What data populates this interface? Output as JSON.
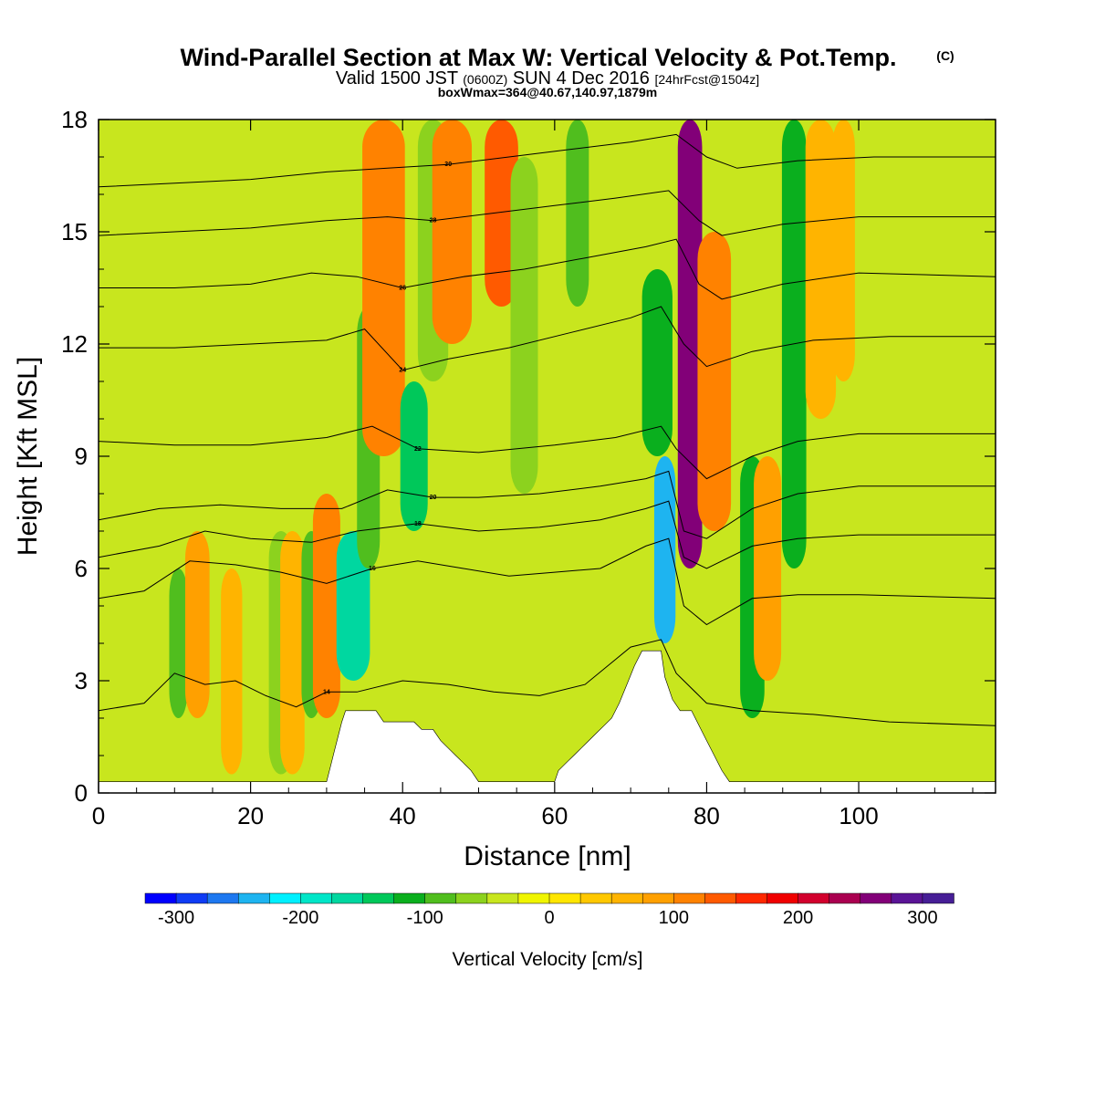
{
  "chart_data": {
    "type": "heatmap",
    "title": "Wind-Parallel Section at Max W: Vertical Velocity & Pot.Temp.",
    "title_mark": "(C)",
    "subtitle_parts": [
      "Valid 1500 JST ",
      "(0600Z)",
      " SUN 4 Dec 2016 ",
      "[24hrFcst@1504z]"
    ],
    "subtitle2": "boxWmax=364@40.67,140.97,1879m",
    "xlabel": "Distance [nm]",
    "ylabel": "Height [Kft MSL]",
    "xlim": [
      0,
      118
    ],
    "ylim": [
      0,
      18
    ],
    "xticks": [
      "0",
      "20",
      "40",
      "60",
      "80",
      "100"
    ],
    "yticks": [
      "0",
      "3",
      "6",
      "9",
      "12",
      "15",
      "18"
    ],
    "grid": false,
    "colorbar": {
      "label": "Vertical Velocity [cm/s]",
      "min": -325,
      "max": 325,
      "step": 25,
      "tick_labels": [
        "-300",
        "-200",
        "-100",
        "0",
        "100",
        "200",
        "300"
      ],
      "colors": [
        "#0000FF",
        "#0F3CF5",
        "#1E78F0",
        "#1EB4F0",
        "#00F0FF",
        "#00E6C8",
        "#00D7A0",
        "#00C85A",
        "#0AAF1E",
        "#50BE1E",
        "#8CD21E",
        "#C8E61E",
        "#F0F500",
        "#FFE600",
        "#FFC800",
        "#FFB400",
        "#FFA000",
        "#FF8200",
        "#FF5A00",
        "#FF2800",
        "#F00000",
        "#D2002D",
        "#AA0050",
        "#820078",
        "#5A1496",
        "#461E96"
      ]
    },
    "vertical_velocity_bands": [
      {
        "x": 10.5,
        "w": 1.2,
        "bottom": 2,
        "top": 6,
        "value": -80
      },
      {
        "x": 13,
        "w": 1.6,
        "bottom": 2,
        "top": 7,
        "value": 90
      },
      {
        "x": 17.5,
        "w": 1.4,
        "bottom": 0.5,
        "top": 6,
        "value": 60
      },
      {
        "x": 24,
        "w": 1.6,
        "bottom": 0.5,
        "top": 7,
        "value": -60
      },
      {
        "x": 25.5,
        "w": 1.6,
        "bottom": 0.5,
        "top": 7,
        "value": 70
      },
      {
        "x": 28,
        "w": 1.3,
        "bottom": 2,
        "top": 7,
        "value": -100
      },
      {
        "x": 30,
        "w": 1.8,
        "bottom": 2,
        "top": 8,
        "value": 120
      },
      {
        "x": 33.5,
        "w": 2.2,
        "bottom": 3,
        "top": 7,
        "value": -175
      },
      {
        "x": 35.5,
        "w": 1.5,
        "bottom": 6,
        "top": 13,
        "value": -90
      },
      {
        "x": 37.5,
        "w": 2.8,
        "bottom": 9,
        "top": 18,
        "value": 110
      },
      {
        "x": 41.5,
        "w": 1.8,
        "bottom": 7,
        "top": 11,
        "value": -130
      },
      {
        "x": 44,
        "w": 2.0,
        "bottom": 11,
        "top": 18,
        "value": -70
      },
      {
        "x": 46.5,
        "w": 2.6,
        "bottom": 12,
        "top": 18,
        "value": 100
      },
      {
        "x": 53,
        "w": 2.2,
        "bottom": 13,
        "top": 18,
        "value": 130
      },
      {
        "x": 56,
        "w": 1.8,
        "bottom": 8,
        "top": 17,
        "value": -60
      },
      {
        "x": 63,
        "w": 1.5,
        "bottom": 13,
        "top": 18,
        "value": -80
      },
      {
        "x": 74.5,
        "w": 1.4,
        "bottom": 4,
        "top": 9,
        "value": -250
      },
      {
        "x": 73.5,
        "w": 2.0,
        "bottom": 9,
        "top": 14,
        "value": -120
      },
      {
        "x": 77.8,
        "w": 1.6,
        "bottom": 6,
        "top": 18,
        "value": 260
      },
      {
        "x": 81,
        "w": 2.2,
        "bottom": 7,
        "top": 15,
        "value": 110
      },
      {
        "x": 86,
        "w": 1.6,
        "bottom": 2,
        "top": 9,
        "value": -110
      },
      {
        "x": 88,
        "w": 1.8,
        "bottom": 3,
        "top": 9,
        "value": 80
      },
      {
        "x": 91.5,
        "w": 1.6,
        "bottom": 6,
        "top": 18,
        "value": -110
      },
      {
        "x": 95,
        "w": 2.0,
        "bottom": 10,
        "top": 18,
        "value": 60
      },
      {
        "x": 98,
        "w": 1.5,
        "bottom": 11,
        "top": 18,
        "value": 70
      }
    ],
    "terrain": [
      [
        0,
        0.3
      ],
      [
        30,
        0.3
      ],
      [
        30.5,
        0.7
      ],
      [
        31,
        1.1
      ],
      [
        31.5,
        1.5
      ],
      [
        32,
        1.9
      ],
      [
        32.5,
        2.2
      ],
      [
        36.5,
        2.2
      ],
      [
        37.5,
        1.9
      ],
      [
        41.5,
        1.9
      ],
      [
        42.5,
        1.7
      ],
      [
        44,
        1.7
      ],
      [
        45,
        1.4
      ],
      [
        46,
        1.2
      ],
      [
        47,
        1.0
      ],
      [
        48,
        0.8
      ],
      [
        49,
        0.6
      ],
      [
        50,
        0.3
      ],
      [
        60,
        0.3
      ],
      [
        60.5,
        0.6
      ],
      [
        61.5,
        0.8
      ],
      [
        62.5,
        1.0
      ],
      [
        63.5,
        1.2
      ],
      [
        64.5,
        1.4
      ],
      [
        65.5,
        1.6
      ],
      [
        66.5,
        1.8
      ],
      [
        67.5,
        2.0
      ],
      [
        68.5,
        2.4
      ],
      [
        69.5,
        2.9
      ],
      [
        70.5,
        3.4
      ],
      [
        71.5,
        3.8
      ],
      [
        74,
        3.8
      ],
      [
        74.5,
        3.1
      ],
      [
        75.5,
        2.5
      ],
      [
        76.5,
        2.2
      ],
      [
        78,
        2.2
      ],
      [
        79,
        1.8
      ],
      [
        80,
        1.4
      ],
      [
        81,
        1.0
      ],
      [
        82,
        0.6
      ],
      [
        83,
        0.3
      ],
      [
        118,
        0.3
      ]
    ],
    "pot_temp_contours": [
      {
        "label": "14",
        "points": [
          [
            0,
            2.2
          ],
          [
            6,
            2.4
          ],
          [
            10,
            3.2
          ],
          [
            14,
            2.9
          ],
          [
            18,
            3.0
          ],
          [
            22,
            2.6
          ],
          [
            26,
            2.3
          ],
          [
            30,
            2.7
          ],
          [
            34,
            2.7
          ],
          [
            40,
            3.0
          ],
          [
            46,
            2.9
          ],
          [
            52,
            2.7
          ],
          [
            58,
            2.6
          ],
          [
            64,
            2.9
          ],
          [
            70,
            3.9
          ],
          [
            74,
            4.1
          ],
          [
            76,
            3.2
          ],
          [
            80,
            2.4
          ],
          [
            86,
            2.2
          ],
          [
            94,
            2.1
          ],
          [
            104,
            1.9
          ],
          [
            118,
            1.8
          ]
        ]
      },
      {
        "label": "16",
        "points": [
          [
            0,
            5.2
          ],
          [
            6,
            5.4
          ],
          [
            12,
            6.2
          ],
          [
            18,
            6.1
          ],
          [
            24,
            5.9
          ],
          [
            30,
            5.6
          ],
          [
            36,
            6.0
          ],
          [
            42,
            6.2
          ],
          [
            48,
            6.0
          ],
          [
            54,
            5.8
          ],
          [
            60,
            5.9
          ],
          [
            66,
            6.0
          ],
          [
            72,
            6.6
          ],
          [
            75,
            6.8
          ],
          [
            77,
            5.0
          ],
          [
            80,
            4.5
          ],
          [
            86,
            5.2
          ],
          [
            92,
            5.3
          ],
          [
            100,
            5.3
          ],
          [
            118,
            5.2
          ]
        ]
      },
      {
        "label": "18",
        "points": [
          [
            0,
            6.3
          ],
          [
            8,
            6.6
          ],
          [
            14,
            7.0
          ],
          [
            20,
            6.8
          ],
          [
            28,
            6.7
          ],
          [
            34,
            7.0
          ],
          [
            42,
            7.2
          ],
          [
            50,
            7.0
          ],
          [
            58,
            7.1
          ],
          [
            66,
            7.3
          ],
          [
            72,
            7.6
          ],
          [
            75,
            7.8
          ],
          [
            77,
            6.3
          ],
          [
            80,
            6.0
          ],
          [
            86,
            6.6
          ],
          [
            92,
            6.8
          ],
          [
            100,
            6.9
          ],
          [
            118,
            6.9
          ]
        ]
      },
      {
        "label": "20",
        "points": [
          [
            0,
            7.3
          ],
          [
            8,
            7.6
          ],
          [
            16,
            7.7
          ],
          [
            24,
            7.6
          ],
          [
            32,
            7.6
          ],
          [
            38,
            8.1
          ],
          [
            44,
            7.9
          ],
          [
            50,
            7.9
          ],
          [
            58,
            8.0
          ],
          [
            66,
            8.2
          ],
          [
            72,
            8.4
          ],
          [
            75,
            8.6
          ],
          [
            77,
            7.0
          ],
          [
            80,
            6.8
          ],
          [
            86,
            7.6
          ],
          [
            92,
            8.0
          ],
          [
            100,
            8.2
          ],
          [
            118,
            8.2
          ]
        ]
      },
      {
        "label": "22",
        "points": [
          [
            0,
            9.4
          ],
          [
            10,
            9.3
          ],
          [
            20,
            9.3
          ],
          [
            30,
            9.5
          ],
          [
            36,
            9.8
          ],
          [
            42,
            9.2
          ],
          [
            50,
            9.1
          ],
          [
            60,
            9.3
          ],
          [
            68,
            9.5
          ],
          [
            74,
            9.8
          ],
          [
            76,
            9.2
          ],
          [
            80,
            8.4
          ],
          [
            86,
            9.0
          ],
          [
            92,
            9.4
          ],
          [
            100,
            9.6
          ],
          [
            118,
            9.6
          ]
        ]
      },
      {
        "label": "24",
        "points": [
          [
            0,
            11.9
          ],
          [
            10,
            11.9
          ],
          [
            20,
            12.0
          ],
          [
            30,
            12.1
          ],
          [
            35,
            12.4
          ],
          [
            40,
            11.3
          ],
          [
            46,
            11.6
          ],
          [
            54,
            11.9
          ],
          [
            62,
            12.3
          ],
          [
            70,
            12.7
          ],
          [
            74,
            13.0
          ],
          [
            77,
            12.0
          ],
          [
            80,
            11.4
          ],
          [
            86,
            11.8
          ],
          [
            94,
            12.1
          ],
          [
            104,
            12.2
          ],
          [
            118,
            12.2
          ]
        ]
      },
      {
        "label": "26",
        "points": [
          [
            0,
            13.5
          ],
          [
            10,
            13.5
          ],
          [
            20,
            13.6
          ],
          [
            28,
            13.9
          ],
          [
            34,
            13.8
          ],
          [
            40,
            13.5
          ],
          [
            48,
            13.8
          ],
          [
            56,
            14.0
          ],
          [
            64,
            14.3
          ],
          [
            72,
            14.6
          ],
          [
            76,
            14.8
          ],
          [
            79,
            13.6
          ],
          [
            82,
            13.2
          ],
          [
            90,
            13.6
          ],
          [
            100,
            13.9
          ],
          [
            118,
            13.8
          ]
        ]
      },
      {
        "label": "28",
        "points": [
          [
            0,
            14.9
          ],
          [
            10,
            15.0
          ],
          [
            20,
            15.1
          ],
          [
            30,
            15.3
          ],
          [
            38,
            15.4
          ],
          [
            44,
            15.3
          ],
          [
            52,
            15.5
          ],
          [
            60,
            15.7
          ],
          [
            68,
            15.9
          ],
          [
            75,
            16.1
          ],
          [
            79,
            15.3
          ],
          [
            82,
            14.9
          ],
          [
            90,
            15.2
          ],
          [
            100,
            15.4
          ],
          [
            118,
            15.4
          ]
        ]
      },
      {
        "label": "30",
        "points": [
          [
            0,
            16.2
          ],
          [
            10,
            16.3
          ],
          [
            20,
            16.4
          ],
          [
            30,
            16.6
          ],
          [
            38,
            16.7
          ],
          [
            46,
            16.8
          ],
          [
            54,
            17.0
          ],
          [
            62,
            17.2
          ],
          [
            70,
            17.4
          ],
          [
            76,
            17.6
          ],
          [
            80,
            17.0
          ],
          [
            84,
            16.7
          ],
          [
            92,
            16.9
          ],
          [
            102,
            17.0
          ],
          [
            118,
            17.0
          ]
        ]
      }
    ]
  }
}
